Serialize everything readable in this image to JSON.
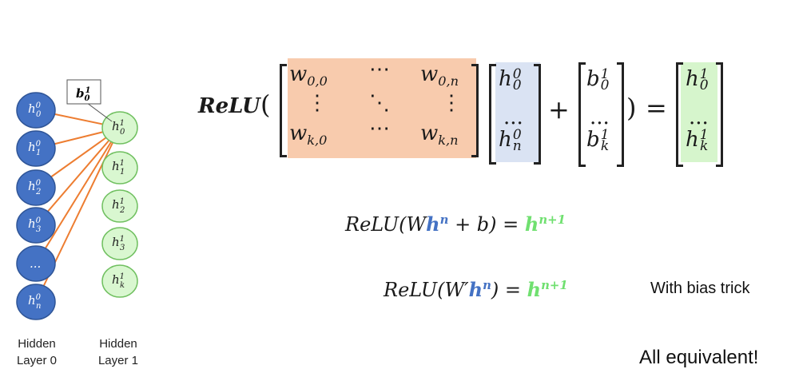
{
  "network": {
    "bias_label": "b",
    "layer0_nodes": [
      {
        "base": "h",
        "sub": "0",
        "sup": "0"
      },
      {
        "base": "h",
        "sub": "1",
        "sup": "0"
      },
      {
        "base": "h",
        "sub": "2",
        "sup": "0"
      },
      {
        "base": "h",
        "sub": "3",
        "sup": "0"
      },
      {
        "base": "...",
        "sub": "",
        "sup": ""
      },
      {
        "base": "h",
        "sub": "n",
        "sup": "0"
      }
    ],
    "layer1_nodes": [
      {
        "base": "h",
        "sub": "0",
        "sup": "1"
      },
      {
        "base": "h",
        "sub": "1",
        "sup": "1"
      },
      {
        "base": "h",
        "sub": "2",
        "sup": "1"
      },
      {
        "base": "h",
        "sub": "3",
        "sup": "1"
      },
      {
        "base": "h",
        "sub": "k",
        "sup": "1"
      }
    ],
    "bias": {
      "sub": "0",
      "sup": "1"
    },
    "layer0_caption_1": "Hidden",
    "layer0_caption_2": "Layer 0",
    "layer1_caption_1": "Hidden",
    "layer1_caption_2": "Layer 1",
    "colors": {
      "layer0_fill": "#4472c4",
      "layer1_fill": "#d9f7d0",
      "layer1_stroke": "#70c060",
      "edge": "#ed7d31"
    }
  },
  "matrix_eq": {
    "relu": "ReLU",
    "open_paren": "(",
    "close_paren": ")",
    "plus": "+",
    "equals": "=",
    "w00": "w",
    "w00_sub": "0,0",
    "w0n": "w",
    "w0n_sub": "0,n",
    "wk0": "w",
    "wk0_sub": "k,0",
    "wkn": "w",
    "wkn_sub": "k,n",
    "hdots": "⋯",
    "vdots": "⋮",
    "ddots": "⋱",
    "dots": "...",
    "colors": {
      "weights_bg": "#f8cbad",
      "h_bg": "#dae3f3",
      "out_bg": "#d6f5cc"
    }
  },
  "eq2": {
    "lhs": "ReLU(W",
    "h": "h",
    "h_sup": "n",
    "rest": " + b) = ",
    "out": "h",
    "out_sup": "n+1"
  },
  "eq3": {
    "lhs": "ReLU(W′",
    "h": "h",
    "h_sup": "n",
    "rest": ") = ",
    "out": "h",
    "out_sup": "n+1",
    "note": "With bias trick"
  },
  "footer": {
    "text": "All equivalent!"
  }
}
